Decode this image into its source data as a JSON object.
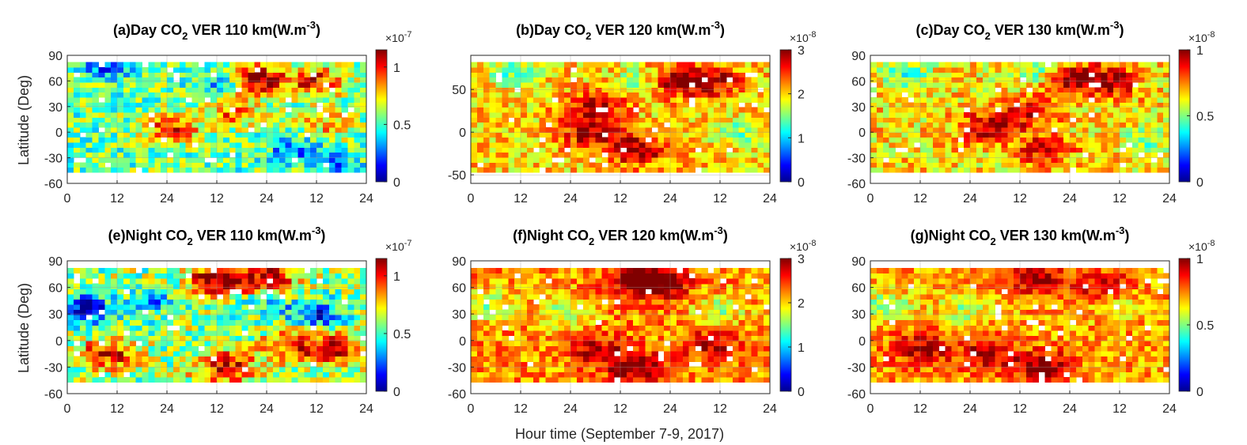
{
  "figure": {
    "xlabel": "Hour time (September 7-9, 2017)",
    "ylabel": "Latitude (Deg)"
  },
  "colormap": [
    "#00008f",
    "#0000ff",
    "#0080ff",
    "#00ffff",
    "#80ff80",
    "#ffff00",
    "#ff8000",
    "#ff0000",
    "#800000"
  ],
  "chart_data": [
    {
      "id": "a",
      "type": "heatmap",
      "title_parts": [
        "(a)Day CO",
        "2",
        " VER 110 km(W.m",
        "-3",
        ")"
      ],
      "xticks": [
        "0",
        "12",
        "24",
        "12",
        "24",
        "12",
        "24"
      ],
      "xlim": [
        0,
        72
      ],
      "yticks": [
        "90",
        "60",
        "30",
        "0",
        "-30",
        "-60"
      ],
      "ylim": [
        -60,
        90
      ],
      "colorbar": {
        "ticks": [
          "0",
          "0.5",
          "1"
        ],
        "tick_values": [
          0,
          0.5,
          1
        ],
        "range": [
          0,
          1.15
        ],
        "exponent": "-7"
      },
      "mean": 0.55,
      "spread": 0.25,
      "lat_range": [
        -47,
        82
      ],
      "hotspots": [
        [
          45,
          62,
          1.2
        ],
        [
          25,
          5,
          0.95
        ],
        [
          40,
          25,
          0.9
        ],
        [
          60,
          60,
          1.0
        ],
        [
          62,
          10,
          0.8
        ]
      ],
      "coldspots": [
        [
          38,
          60,
          0.2
        ],
        [
          10,
          80,
          0.2
        ],
        [
          55,
          -20,
          0.25
        ],
        [
          65,
          -40,
          0.3
        ]
      ]
    },
    {
      "id": "b",
      "type": "heatmap",
      "title_parts": [
        "(b)Day CO",
        "2",
        " VER 120 km(W.m",
        "-3",
        ")"
      ],
      "xticks": [
        "0",
        "12",
        "24",
        "12",
        "24",
        "12",
        "24"
      ],
      "xlim": [
        0,
        72
      ],
      "yticks": [
        "50",
        "0",
        "-50"
      ],
      "ylim": [
        -60,
        90
      ],
      "colorbar": {
        "ticks": [
          "0",
          "1",
          "2",
          "3"
        ],
        "tick_values": [
          0,
          1,
          2,
          3
        ],
        "range": [
          0,
          3
        ],
        "exponent": "-8"
      },
      "mean": 2.0,
      "spread": 0.5,
      "lat_range": [
        -47,
        82
      ],
      "hotspots": [
        [
          48,
          60,
          3.0
        ],
        [
          30,
          30,
          2.9
        ],
        [
          40,
          -20,
          3.0
        ],
        [
          28,
          0,
          2.8
        ],
        [
          58,
          60,
          2.8
        ]
      ],
      "coldspots": [
        [
          10,
          70,
          1.4
        ],
        [
          42,
          60,
          1.3
        ],
        [
          64,
          0,
          1.5
        ]
      ]
    },
    {
      "id": "c",
      "type": "heatmap",
      "title_parts": [
        "(c)Day CO",
        "2",
        " VER 130 km(W.m",
        "-3",
        ")"
      ],
      "xticks": [
        "0",
        "12",
        "24",
        "12",
        "24",
        "12",
        "24"
      ],
      "xlim": [
        0,
        72
      ],
      "yticks": [
        "90",
        "60",
        "30",
        "0",
        "-30",
        "-60"
      ],
      "ylim": [
        -60,
        90
      ],
      "colorbar": {
        "ticks": [
          "0",
          "0.5",
          "1"
        ],
        "tick_values": [
          0,
          0.5,
          1
        ],
        "range": [
          0,
          1
        ],
        "exponent": "-8"
      },
      "mean": 0.65,
      "spread": 0.18,
      "lat_range": [
        -47,
        82
      ],
      "hotspots": [
        [
          48,
          62,
          1.0
        ],
        [
          28,
          5,
          0.95
        ],
        [
          38,
          25,
          0.9
        ],
        [
          42,
          -20,
          0.9
        ],
        [
          58,
          60,
          0.95
        ]
      ],
      "coldspots": [
        [
          8,
          70,
          0.45
        ],
        [
          40,
          70,
          0.45
        ],
        [
          66,
          -10,
          0.5
        ]
      ]
    },
    {
      "id": "e",
      "type": "heatmap",
      "title_parts": [
        "(e)Night CO",
        "2",
        " VER 110 km(W.m",
        "-3",
        ")"
      ],
      "xticks": [
        "0",
        "12",
        "24",
        "12",
        "24",
        "12",
        "24"
      ],
      "xlim": [
        0,
        72
      ],
      "yticks": [
        "90",
        "60",
        "30",
        "0",
        "-30",
        "-60"
      ],
      "ylim": [
        -60,
        90
      ],
      "colorbar": {
        "ticks": [
          "0",
          "0.5",
          "1"
        ],
        "tick_values": [
          0,
          0.5,
          1
        ],
        "range": [
          0,
          1.15
        ],
        "exponent": "-7"
      },
      "mean": 0.6,
      "spread": 0.28,
      "lat_range": [
        -47,
        82
      ],
      "hotspots": [
        [
          36,
          70,
          1.2
        ],
        [
          48,
          70,
          1.1
        ],
        [
          10,
          -15,
          1.0
        ],
        [
          38,
          -30,
          1.1
        ],
        [
          55,
          -5,
          1.0
        ],
        [
          65,
          -10,
          1.0
        ]
      ],
      "coldspots": [
        [
          4,
          35,
          0.05
        ],
        [
          20,
          45,
          0.3
        ],
        [
          60,
          30,
          0.2
        ],
        [
          48,
          45,
          0.35
        ]
      ]
    },
    {
      "id": "f",
      "type": "heatmap",
      "title_parts": [
        "(f)Night CO",
        "2",
        " VER 120 km(W.m",
        "-3",
        ")"
      ],
      "xticks": [
        "0",
        "12",
        "24",
        "12",
        "24",
        "12",
        "24"
      ],
      "xlim": [
        0,
        72
      ],
      "yticks": [
        "90",
        "60",
        "30",
        "0",
        "-30",
        "-60"
      ],
      "ylim": [
        -60,
        90
      ],
      "colorbar": {
        "ticks": [
          "0",
          "1",
          "2",
          "3"
        ],
        "tick_values": [
          0,
          1,
          2,
          3
        ],
        "range": [
          0,
          3
        ],
        "exponent": "-8"
      },
      "mean": 2.2,
      "spread": 0.45,
      "lat_range": [
        -47,
        82
      ],
      "hotspots": [
        [
          40,
          70,
          3.0
        ],
        [
          46,
          65,
          2.9
        ],
        [
          40,
          -30,
          3.0
        ],
        [
          30,
          -10,
          2.8
        ],
        [
          58,
          -5,
          2.8
        ]
      ],
      "coldspots": [
        [
          4,
          40,
          1.5
        ],
        [
          22,
          30,
          1.6
        ],
        [
          60,
          35,
          1.6
        ]
      ]
    },
    {
      "id": "g",
      "type": "heatmap",
      "title_parts": [
        "(g)Night CO",
        "2",
        " VER 130 km(W.m",
        "-3",
        ")"
      ],
      "xticks": [
        "0",
        "12",
        "24",
        "12",
        "24",
        "12",
        "24"
      ],
      "xlim": [
        0,
        72
      ],
      "yticks": [
        "90",
        "60",
        "30",
        "0",
        "-30",
        "-60"
      ],
      "ylim": [
        -60,
        90
      ],
      "colorbar": {
        "ticks": [
          "0",
          "0.5",
          "1"
        ],
        "tick_values": [
          0,
          0.5,
          1
        ],
        "range": [
          0,
          1
        ],
        "exponent": "-8"
      },
      "mean": 0.72,
      "spread": 0.15,
      "lat_range": [
        -47,
        82
      ],
      "hotspots": [
        [
          40,
          70,
          1.0
        ],
        [
          42,
          -30,
          1.0
        ],
        [
          12,
          -10,
          0.95
        ],
        [
          28,
          -15,
          0.95
        ],
        [
          56,
          60,
          0.95
        ]
      ],
      "coldspots": [
        [
          4,
          40,
          0.5
        ],
        [
          22,
          35,
          0.55
        ],
        [
          60,
          40,
          0.55
        ]
      ]
    }
  ]
}
